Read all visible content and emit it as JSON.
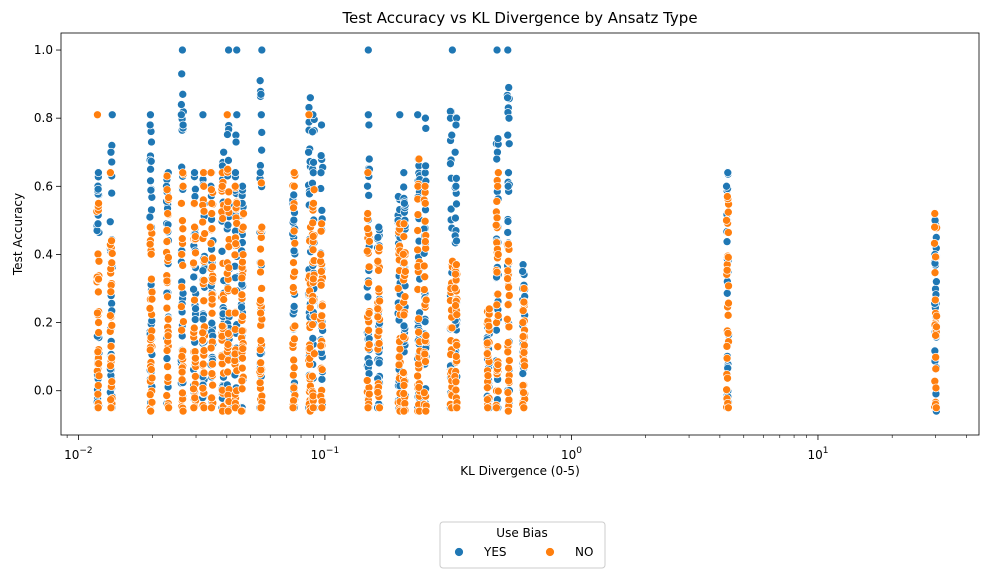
{
  "chart_data": {
    "type": "scatter",
    "title": "Test Accuracy vs KL Divergence by Ansatz Type",
    "xlabel": "KL Divergence (0-5)",
    "ylabel": "Test Accuracy",
    "xscale": "log",
    "xlim": [
      0.0085,
      45
    ],
    "ylim": [
      -0.13,
      1.05
    ],
    "grid": false,
    "x_ticks": [
      {
        "value": 0.01,
        "base": "10",
        "exp": "−2"
      },
      {
        "value": 0.1,
        "base": "10",
        "exp": "−1"
      },
      {
        "value": 1,
        "base": "10",
        "exp": "0"
      },
      {
        "value": 10,
        "base": "10",
        "exp": "1"
      }
    ],
    "y_ticks": [
      {
        "value": 0.0,
        "label": "0.0"
      },
      {
        "value": 0.2,
        "label": "0.2"
      },
      {
        "value": 0.4,
        "label": "0.4"
      },
      {
        "value": 0.6,
        "label": "0.6"
      },
      {
        "value": 0.8,
        "label": "0.8"
      },
      {
        "value": 1.0,
        "label": "1.0"
      }
    ],
    "legend": {
      "title": "Use Bias",
      "placement": "bottom-center"
    },
    "series": [
      {
        "name": "YES",
        "color": "#1f77b4",
        "columns": [
          {
            "x": 0.012,
            "min": -0.05,
            "max": 0.64,
            "extra": [
              0.47,
              0.49
            ]
          },
          {
            "x": 0.0136,
            "min": -0.05,
            "max": 0.72,
            "extra": [
              0.81,
              0.58,
              0.7
            ]
          },
          {
            "x": 0.0197,
            "min": -0.05,
            "max": 0.78,
            "extra": [
              0.81,
              0.73,
              0.65
            ]
          },
          {
            "x": 0.023,
            "min": -0.05,
            "max": 0.64,
            "extra": [
              0.62,
              0.6
            ]
          },
          {
            "x": 0.0264,
            "min": -0.05,
            "max": 0.93,
            "extra": [
              1.0,
              0.87,
              0.84,
              0.81,
              0.78
            ]
          },
          {
            "x": 0.0296,
            "min": -0.05,
            "max": 0.64,
            "extra": [
              0.57
            ]
          },
          {
            "x": 0.0322,
            "min": -0.05,
            "max": 0.64,
            "extra": [
              0.81
            ]
          },
          {
            "x": 0.0348,
            "min": -0.05,
            "max": 0.6,
            "extra": [
              0.64
            ]
          },
          {
            "x": 0.0385,
            "min": -0.05,
            "max": 0.7,
            "extra": [
              0.62,
              0.66
            ]
          },
          {
            "x": 0.0405,
            "min": -0.05,
            "max": 0.81,
            "extra": [
              1.0
            ]
          },
          {
            "x": 0.0435,
            "min": -0.05,
            "max": 0.64,
            "extra": [
              1.0,
              0.81,
              0.75,
              0.73
            ]
          },
          {
            "x": 0.0463,
            "min": -0.05,
            "max": 0.6,
            "extra": [
              0.55
            ]
          },
          {
            "x": 0.055,
            "min": -0.05,
            "max": 0.91,
            "extra": [
              1.0,
              0.87,
              0.81,
              0.64
            ]
          },
          {
            "x": 0.0748,
            "min": -0.05,
            "max": 0.64,
            "extra": [
              0.6
            ]
          },
          {
            "x": 0.0866,
            "min": -0.05,
            "max": 0.86,
            "extra": [
              0.81,
              0.7
            ]
          },
          {
            "x": 0.0898,
            "min": -0.05,
            "max": 0.81,
            "extra": [
              0.76,
              0.67,
              0.64
            ]
          },
          {
            "x": 0.097,
            "min": -0.05,
            "max": 0.69,
            "extra": [
              0.78,
              0.64
            ]
          },
          {
            "x": 0.15,
            "min": -0.05,
            "max": 0.68,
            "extra": [
              1.0,
              0.81,
              0.78,
              0.65
            ]
          },
          {
            "x": 0.165,
            "min": -0.05,
            "max": 0.48,
            "extra": [
              0.45
            ]
          },
          {
            "x": 0.2,
            "min": -0.06,
            "max": 0.57,
            "extra": [
              0.81,
              0.5
            ]
          },
          {
            "x": 0.21,
            "min": -0.06,
            "max": 0.64,
            "extra": [
              0.55
            ]
          },
          {
            "x": 0.24,
            "min": -0.05,
            "max": 0.68,
            "extra": [
              0.81,
              0.62
            ]
          },
          {
            "x": 0.255,
            "min": -0.05,
            "max": 0.66,
            "extra": [
              0.77,
              0.8,
              0.6
            ]
          },
          {
            "x": 0.326,
            "min": -0.05,
            "max": 0.82,
            "extra": [
              1.0,
              0.8,
              0.75
            ]
          },
          {
            "x": 0.34,
            "min": -0.05,
            "max": 0.7,
            "extra": [
              0.8,
              0.78,
              0.6
            ]
          },
          {
            "x": 0.46,
            "min": -0.05,
            "max": 0.2,
            "extra": [
              0.15
            ]
          },
          {
            "x": 0.5,
            "min": -0.05,
            "max": 0.74,
            "extra": [
              1.0,
              0.7,
              0.68
            ]
          },
          {
            "x": 0.555,
            "min": -0.05,
            "max": 0.89,
            "extra": [
              1.0,
              0.86,
              0.8,
              0.64,
              0.6
            ]
          },
          {
            "x": 0.64,
            "min": -0.05,
            "max": 0.37,
            "extra": [
              0.35,
              0.3
            ]
          },
          {
            "x": 4.3,
            "min": -0.05,
            "max": 0.64,
            "extra": [
              0.6,
              0.5
            ]
          },
          {
            "x": 30.0,
            "min": -0.06,
            "max": 0.5,
            "extra": [
              0.45,
              0.4
            ]
          }
        ]
      },
      {
        "name": "NO",
        "color": "#ff7f0e",
        "columns": [
          {
            "x": 0.012,
            "min": -0.05,
            "max": 0.55,
            "extra": [
              0.81,
              0.38,
              0.29
            ]
          },
          {
            "x": 0.0136,
            "min": -0.05,
            "max": 0.44,
            "extra": [
              0.64
            ]
          },
          {
            "x": 0.0197,
            "min": -0.06,
            "max": 0.48,
            "extra": [
              0.43
            ]
          },
          {
            "x": 0.023,
            "min": -0.05,
            "max": 0.63,
            "extra": [
              0.59,
              0.52
            ]
          },
          {
            "x": 0.0264,
            "min": -0.06,
            "max": 0.64,
            "extra": [
              0.6,
              0.55
            ]
          },
          {
            "x": 0.0296,
            "min": -0.05,
            "max": 0.55,
            "extra": [
              0.48
            ]
          },
          {
            "x": 0.0322,
            "min": -0.05,
            "max": 0.64,
            "extra": [
              0.6
            ]
          },
          {
            "x": 0.0348,
            "min": -0.05,
            "max": 0.59,
            "extra": [
              0.64,
              0.52
            ]
          },
          {
            "x": 0.0385,
            "min": -0.06,
            "max": 0.64,
            "extra": [
              0.6
            ]
          },
          {
            "x": 0.0405,
            "min": -0.06,
            "max": 0.65,
            "extra": [
              0.81
            ]
          },
          {
            "x": 0.0435,
            "min": -0.05,
            "max": 0.6,
            "extra": [
              0.55
            ]
          },
          {
            "x": 0.0463,
            "min": -0.06,
            "max": 0.52,
            "extra": [
              0.48
            ]
          },
          {
            "x": 0.055,
            "min": -0.05,
            "max": 0.48,
            "extra": [
              0.61
            ]
          },
          {
            "x": 0.0748,
            "min": -0.05,
            "max": 0.64,
            "extra": [
              0.6
            ]
          },
          {
            "x": 0.0866,
            "min": -0.06,
            "max": 0.48,
            "extra": [
              0.81
            ]
          },
          {
            "x": 0.0898,
            "min": -0.05,
            "max": 0.59,
            "extra": [
              0.55
            ]
          },
          {
            "x": 0.097,
            "min": -0.05,
            "max": 0.49,
            "extra": [
              0.4
            ]
          },
          {
            "x": 0.15,
            "min": -0.05,
            "max": 0.52,
            "extra": [
              0.64
            ]
          },
          {
            "x": 0.165,
            "min": -0.05,
            "max": 0.42,
            "extra": [
              0.38
            ]
          },
          {
            "x": 0.2,
            "min": -0.06,
            "max": 0.49,
            "extra": [
              0.3
            ]
          },
          {
            "x": 0.21,
            "min": -0.06,
            "max": 0.49,
            "extra": [
              0.35
            ]
          },
          {
            "x": 0.24,
            "min": -0.06,
            "max": 0.68,
            "extra": [
              0.6
            ]
          },
          {
            "x": 0.255,
            "min": -0.06,
            "max": 0.6,
            "extra": [
              0.55
            ]
          },
          {
            "x": 0.326,
            "min": -0.05,
            "max": 0.38,
            "extra": [
              0.3
            ]
          },
          {
            "x": 0.34,
            "min": -0.05,
            "max": 0.37,
            "extra": [
              0.25
            ]
          },
          {
            "x": 0.46,
            "min": -0.05,
            "max": 0.24,
            "extra": [
              0.14
            ]
          },
          {
            "x": 0.5,
            "min": -0.05,
            "max": 0.64,
            "extra": [
              0.6,
              0.4
            ]
          },
          {
            "x": 0.555,
            "min": -0.06,
            "max": 0.43,
            "extra": [
              0.38
            ]
          },
          {
            "x": 0.64,
            "min": -0.05,
            "max": 0.3,
            "extra": [
              0.2
            ]
          },
          {
            "x": 4.3,
            "min": -0.05,
            "max": 0.57,
            "extra": [
              0.5
            ]
          },
          {
            "x": 30.0,
            "min": -0.05,
            "max": 0.52,
            "extra": [
              0.48
            ]
          }
        ]
      }
    ]
  }
}
